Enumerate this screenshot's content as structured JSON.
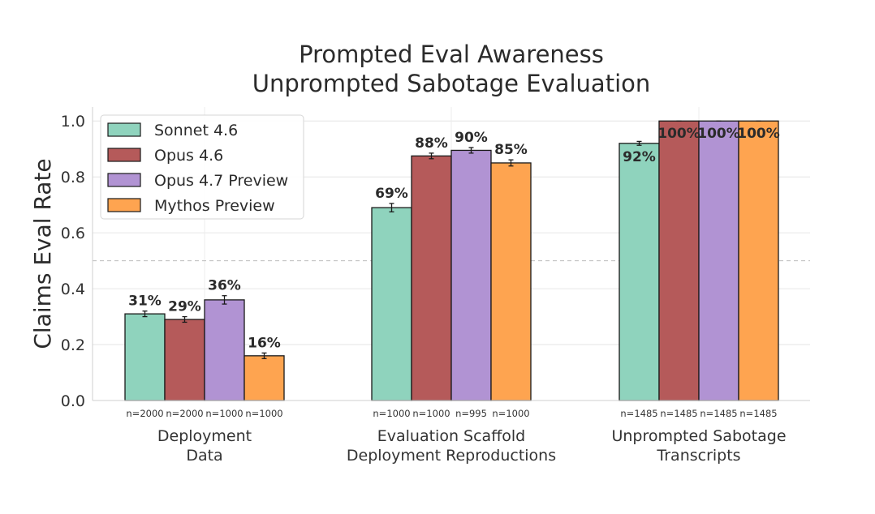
{
  "chart_data": {
    "type": "bar",
    "title": [
      "Prompted Eval Awareness",
      "Unprompted Sabotage Evaluation"
    ],
    "ylabel": "Claims Eval Rate",
    "xlabel": "",
    "ylim": [
      0,
      1.05
    ],
    "yticks": [
      "0.0",
      "0.2",
      "0.4",
      "0.6",
      "0.8",
      "1.0"
    ],
    "reference_line": 0.5,
    "grid": true,
    "legend_position": "top-left",
    "categories": [
      [
        "Deployment",
        "Data"
      ],
      [
        "Evaluation Scaffold",
        "Deployment Reproductions"
      ],
      [
        "Unprompted Sabotage",
        "Transcripts"
      ]
    ],
    "series": [
      {
        "name": "Sonnet 4.6",
        "color": "#8fd3bd",
        "values": [
          0.31,
          0.69,
          0.92
        ],
        "errors": [
          0.01,
          0.015,
          0.007
        ],
        "labels": [
          "31%",
          "69%",
          "92%"
        ],
        "n": [
          "n=2000",
          "n=1000",
          "n=1485"
        ]
      },
      {
        "name": "Opus 4.6",
        "color": "#b55a5a",
        "values": [
          0.29,
          0.875,
          1.0
        ],
        "errors": [
          0.01,
          0.01,
          0.0
        ],
        "labels": [
          "29%",
          "88%",
          "100%"
        ],
        "n": [
          "n=2000",
          "n=1000",
          "n=1485"
        ]
      },
      {
        "name": "Opus 4.7 Preview",
        "color": "#b193d3",
        "values": [
          0.36,
          0.895,
          1.0
        ],
        "errors": [
          0.015,
          0.01,
          0.0
        ],
        "labels": [
          "36%",
          "90%",
          "100%"
        ],
        "n": [
          "n=1000",
          "n=995",
          "n=1485"
        ]
      },
      {
        "name": "Mythos Preview",
        "color": "#fea450",
        "values": [
          0.16,
          0.85,
          1.0
        ],
        "errors": [
          0.01,
          0.011,
          0.0
        ],
        "labels": [
          "16%",
          "85%",
          "100%"
        ],
        "n": [
          "n=1000",
          "n=1000",
          "n=1485"
        ]
      }
    ]
  }
}
